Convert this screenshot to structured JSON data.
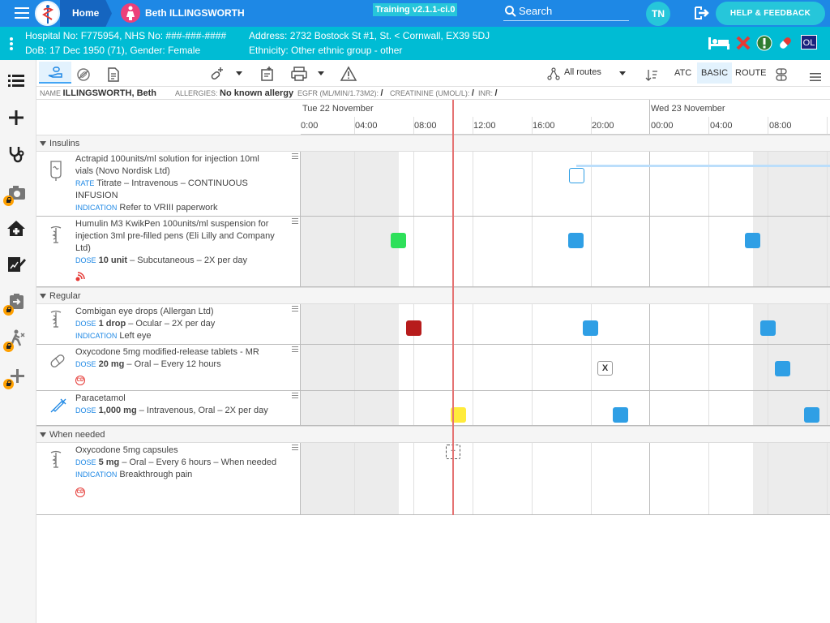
{
  "topbar": {
    "home_label": "Home",
    "patient_name": "Beth ILLINGSWORTH",
    "training_label": "Training v2.1.1-ci.0",
    "search_label": "Search",
    "user_initials": "TN",
    "help_label": "HELP & FEEDBACK"
  },
  "banner": {
    "line1_left": "Hospital No: F775954, NHS No: ###-###-####",
    "line1_right": "Address: 2732 Bostock St #1, St. < Cornwall, EX39 5DJ",
    "line2_left": "DoB: 17 Dec 1950 (71), Gender: Female",
    "line2_right": "Ethnicity: Other ethnic group - other",
    "ol_label": "OL"
  },
  "toolbar": {
    "routes_label": "All routes",
    "atc_label": "ATC",
    "basic_label": "BASIC",
    "route_label": "ROUTE"
  },
  "infobar": {
    "name_label": "NAME",
    "name_value": "ILLINGSWORTH, Beth",
    "allergies_label": "ALLERGIES:",
    "allergies_value": "No known allergy",
    "egfr_label": "EGFR (ML/MIN/1.73M2):",
    "egfr_value": "/",
    "creat_label": "CREATININE (UMOL/L):",
    "creat_value": "/",
    "inr_label": "INR:",
    "inr_value": "/"
  },
  "timeline": {
    "days": [
      "Tue 22 November",
      "Wed 23 November"
    ],
    "hours": [
      "0:00",
      "04:00",
      "08:00",
      "12:00",
      "16:00",
      "20:00",
      "00:00",
      "04:00",
      "08:00"
    ]
  },
  "sections": {
    "insulins": "Insulins",
    "regular": "Regular",
    "when_needed": "When needed"
  },
  "rows": {
    "actrapid": {
      "name": "Actrapid 100units/ml solution for injection 10ml vials (Novo Nordisk Ltd)",
      "rate_label": "RATE",
      "rate_value": "Titrate – Intravenous – CONTINUOUS INFUSION",
      "ind_label": "INDICATION",
      "ind_value": "Refer to VRIII paperwork"
    },
    "humulin": {
      "name": "Humulin M3 KwikPen 100units/ml suspension for injection 3ml pre-filled pens (Eli Lilly and Company Ltd)",
      "dose_label": "DOSE",
      "dose_bold": "10 unit",
      "dose_rest": " – Subcutaneous – 2X per day"
    },
    "combigan": {
      "name": "Combigan eye drops (Allergan Ltd)",
      "dose_label": "DOSE",
      "dose_bold": "1 drop",
      "dose_rest": " – Ocular – 2X per day",
      "ind_label": "INDICATION",
      "ind_value": "Left eye"
    },
    "oxy_mr": {
      "name": "Oxycodone 5mg modified-release tablets - MR",
      "dose_label": "DOSE",
      "dose_bold": "20 mg",
      "dose_rest": " – Oral – Every 12 hours",
      "cd": "CD"
    },
    "paracetamol": {
      "name": "Paracetamol",
      "dose_label": "DOSE",
      "dose_bold": "1,000 mg",
      "dose_rest": " – Intravenous, Oral – 2X per day"
    },
    "oxy_caps": {
      "name": "Oxycodone 5mg capsules",
      "dose_label": "DOSE",
      "dose_bold": "5 mg",
      "dose_rest": " – Oral – Every 6 hours – When needed",
      "ind_label": "INDICATION",
      "ind_value": "Breakthrough pain",
      "cd": "CD"
    }
  },
  "markers": {
    "x_label": "X",
    "plus_label": "+"
  },
  "colors": {
    "given": "#2ee05a",
    "due": "#2f9fe5",
    "missed": "#b71c1c",
    "current": "#ffeb3b",
    "now_line": "#e57373"
  }
}
